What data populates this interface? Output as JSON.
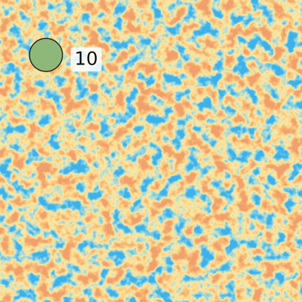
{
  "label": "10"
}
